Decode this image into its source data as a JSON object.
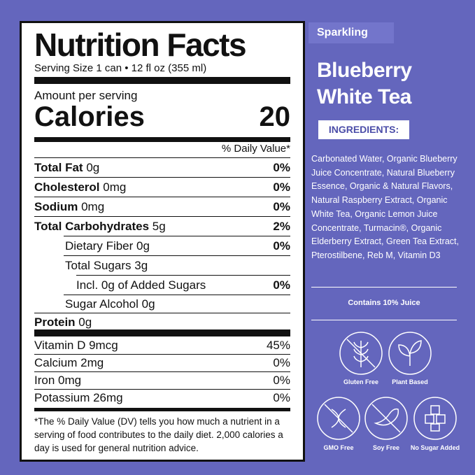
{
  "nutrition": {
    "title": "Nutrition Facts",
    "serving": "Serving Size 1 can • 12 fl oz (355 ml)",
    "amount_per_serving": "Amount per serving",
    "calories_label": "Calories",
    "calories": "20",
    "daily_value_header": "% Daily Value*",
    "nutrients": [
      {
        "name": "Total Fat",
        "amount": "0g",
        "dv": "0%"
      },
      {
        "name": "Cholesterol",
        "amount": "0mg",
        "dv": "0%"
      },
      {
        "name": "Sodium",
        "amount": "0mg",
        "dv": "0%"
      },
      {
        "name": "Total Carbohydrates",
        "amount": "5g",
        "dv": "2%"
      },
      {
        "name": "Dietary Fiber",
        "amount": "0g",
        "dv": "0%"
      },
      {
        "name": "Total Sugars",
        "amount": "3g"
      },
      {
        "name": "Incl. 0g of Added Sugars",
        "dv": "0%"
      },
      {
        "name": "Sugar Alcohol",
        "amount": "0g"
      },
      {
        "name": "Protein",
        "amount": "0g"
      }
    ],
    "vitamins": [
      {
        "name": "Vitamin D 9mcg",
        "dv": "45%"
      },
      {
        "name": "Calcium 2mg",
        "dv": "0%"
      },
      {
        "name": "Iron 0mg",
        "dv": "0%"
      },
      {
        "name": "Potassium 26mg",
        "dv": "0%"
      }
    ],
    "footnote": "*The % Daily Value (DV) tells you how much a nutrient in a serving of food contributes to the daily diet. 2,000 calories a day is used for general nutrition advice."
  },
  "product": {
    "tag": "Sparkling",
    "name": [
      "Blueberry",
      "White Tea"
    ],
    "ingredients_heading": "INGREDIENTS:",
    "ingredients": "Carbonated Water, Organic Blueberry Juice Concentrate, Natural Blueberry Essence, Organic & Natural Flavors, Natural Raspberry Extract, Organic White Tea, Organic Lemon Juice Concentrate, Turmacin®, Organic Elderberry Extract, Green Tea Extract, Pterostilbene, Reb M, Vitamin D3",
    "juice_note": "Contains 10% Juice",
    "badges": [
      "Gluten Free",
      "Plant Based",
      "GMO Free",
      "Soy Free",
      "No Sugar Added"
    ]
  }
}
